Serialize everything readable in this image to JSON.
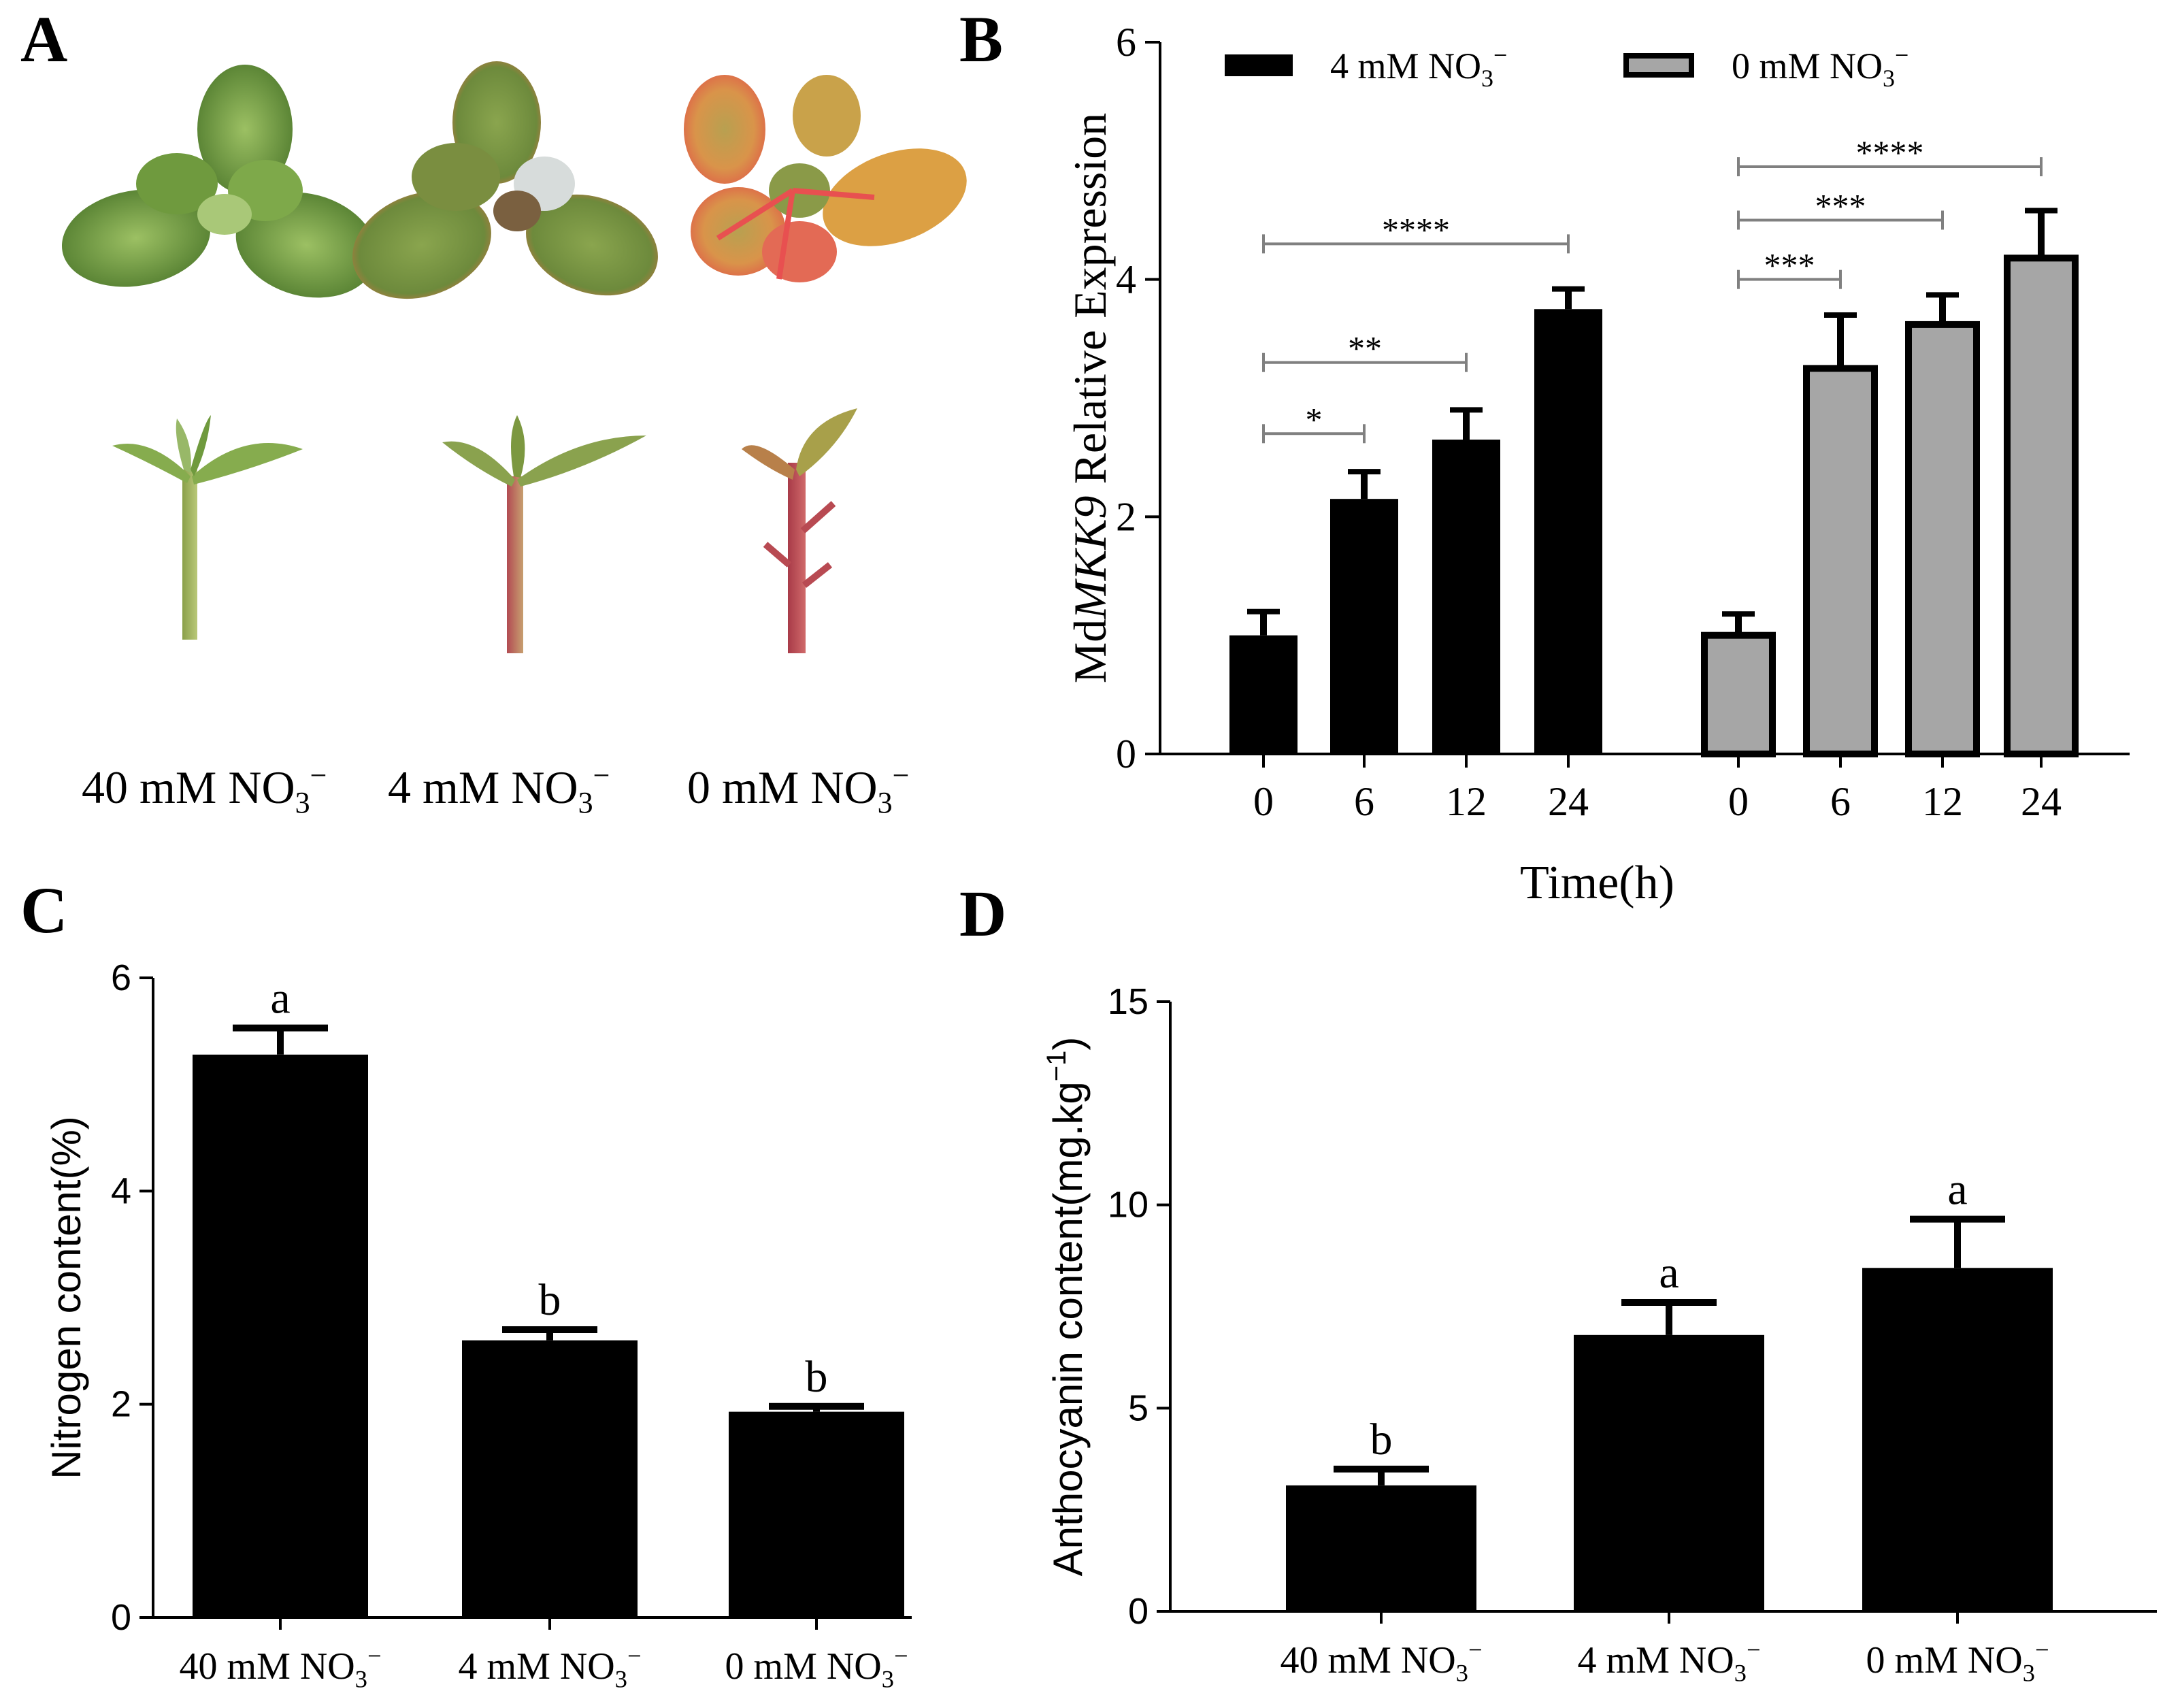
{
  "panels": {
    "A": {
      "letter": "A",
      "labels": [
        {
          "main": "40 mM NO",
          "sub": "3",
          "sup": "−"
        },
        {
          "main": "4 mM NO",
          "sub": "3",
          "sup": "−"
        },
        {
          "main": "0 mM NO",
          "sub": "3",
          "sup": "−"
        }
      ]
    },
    "B": {
      "letter": "B"
    },
    "C": {
      "letter": "C"
    },
    "D": {
      "letter": "D"
    }
  },
  "chart_data": [
    {
      "id": "B",
      "type": "bar",
      "title": "",
      "ylabel_prefix": "Md",
      "ylabel_gene": "MKK9",
      "ylabel_suffix": " Relative Expression",
      "xlabel": "Time(h)",
      "ylim": [
        0,
        6
      ],
      "yticks": [
        "0",
        "2",
        "4",
        "6"
      ],
      "groups": [
        {
          "name": "4 mM NO3-",
          "legend_main": "4 mM NO",
          "legend_sub": "3",
          "legend_sup": "−",
          "fill": "#000000",
          "categories": [
            "0",
            "6",
            "12",
            "24"
          ],
          "values": [
            1.0,
            2.15,
            2.65,
            3.75
          ],
          "errors": [
            0.2,
            0.23,
            0.25,
            0.17
          ]
        },
        {
          "name": "0 mM NO3-",
          "legend_main": "0 mM NO",
          "legend_sub": "3",
          "legend_sup": "−",
          "fill": "#a6a6a6",
          "categories": [
            "0",
            "6",
            "12",
            "24"
          ],
          "values": [
            1.0,
            3.25,
            3.62,
            4.18
          ],
          "errors": [
            0.18,
            0.45,
            0.25,
            0.4
          ]
        }
      ],
      "significance": [
        {
          "group": 0,
          "from": 0,
          "to": 3,
          "y": 4.3,
          "label": "****"
        },
        {
          "group": 0,
          "from": 0,
          "to": 2,
          "y": 3.3,
          "label": "**"
        },
        {
          "group": 0,
          "from": 0,
          "to": 1,
          "y": 2.7,
          "label": "*"
        },
        {
          "group": 1,
          "from": 0,
          "to": 3,
          "y": 4.95,
          "label": "****"
        },
        {
          "group": 1,
          "from": 0,
          "to": 2,
          "y": 4.5,
          "label": "***"
        },
        {
          "group": 1,
          "from": 0,
          "to": 1,
          "y": 4.0,
          "label": "***"
        }
      ]
    },
    {
      "id": "C",
      "type": "bar",
      "title": "",
      "ylabel": "Nitrogen content(%)",
      "xlabel": "",
      "ylim": [
        0,
        6
      ],
      "yticks": [
        "0",
        "2",
        "4",
        "6"
      ],
      "categories": [
        {
          "main": "40 mM NO",
          "sub": "3",
          "sup": "−"
        },
        {
          "main": "4 mM NO",
          "sub": "3",
          "sup": "−"
        },
        {
          "main": "0 mM NO",
          "sub": "3",
          "sup": "−"
        }
      ],
      "values": [
        5.28,
        2.6,
        1.93
      ],
      "errors": [
        0.25,
        0.1,
        0.05
      ],
      "letters": [
        "a",
        "b",
        "b"
      ]
    },
    {
      "id": "D",
      "type": "bar",
      "title": "",
      "ylabel_main": "Anthocyanin content(mg.kg",
      "ylabel_sup": "−1",
      "ylabel_end": ")",
      "xlabel": "",
      "ylim": [
        0,
        15
      ],
      "yticks": [
        "0",
        "5",
        "10",
        "15"
      ],
      "categories": [
        {
          "main": "40 mM NO",
          "sub": "3",
          "sup": "−"
        },
        {
          "main": "4 mM NO",
          "sub": "3",
          "sup": "−"
        },
        {
          "main": "0 mM NO",
          "sub": "3",
          "sup": "−"
        }
      ],
      "values": [
        3.1,
        6.8,
        8.45
      ],
      "errors": [
        0.4,
        0.8,
        1.2
      ],
      "letters": [
        "b",
        "a",
        "a"
      ]
    }
  ]
}
